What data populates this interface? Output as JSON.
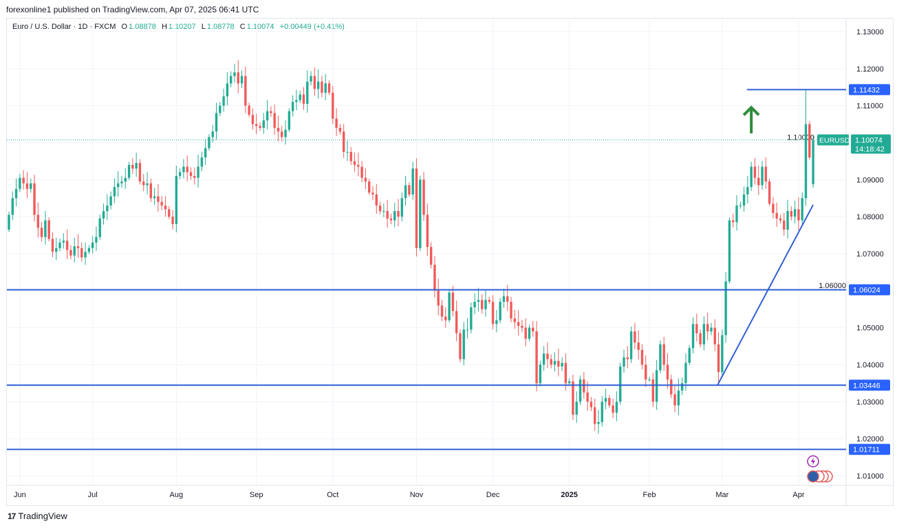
{
  "header": {
    "published": "forexonline1 published on TradingView.com, Apr 07, 2025 06:41 UTC"
  },
  "legend": {
    "symbol": "Euro / U.S. Dollar · 1D · FXCM",
    "o_label": "O",
    "o": "1.08878",
    "h_label": "H",
    "h": "1.10207",
    "l_label": "L",
    "l": "1.08778",
    "c_label": "C",
    "c": "1.10074",
    "change": "+0.00449 (+0.41%)"
  },
  "footer": {
    "logo_text": "TradingView"
  },
  "chart_data": {
    "type": "candlestick",
    "symbol": "EURUSD",
    "interval": "1D",
    "ylim": [
      1.005,
      1.134
    ],
    "grid": true,
    "colors": {
      "up": "#22ab94",
      "down": "#f05a5a",
      "lines": "#2f5fd6",
      "arrow": "#2e8b3a",
      "last_price": "#22ab94"
    },
    "y_ticks": [
      "1.13000",
      "1.12000",
      "1.11000",
      "1.10000",
      "1.09000",
      "1.08000",
      "1.07000",
      "1.06000",
      "1.05000",
      "1.04000",
      "1.03000",
      "1.02000",
      "1.01000"
    ],
    "x_ticks": [
      {
        "label": "Jun",
        "bar": 3
      },
      {
        "label": "Jul",
        "bar": 23
      },
      {
        "label": "Aug",
        "bar": 46
      },
      {
        "label": "Sep",
        "bar": 68
      },
      {
        "label": "Oct",
        "bar": 89
      },
      {
        "label": "Nov",
        "bar": 112
      },
      {
        "label": "Dec",
        "bar": 133
      },
      {
        "label": "2025",
        "bar": 154
      },
      {
        "label": "Feb",
        "bar": 176
      },
      {
        "label": "Mar",
        "bar": 196
      },
      {
        "label": "Apr",
        "bar": 217
      }
    ],
    "closes": [
      1.0805,
      1.085,
      1.0875,
      1.0905,
      1.089,
      1.0875,
      1.089,
      1.0805,
      1.077,
      1.0745,
      1.079,
      1.074,
      1.0705,
      1.0715,
      1.073,
      1.0735,
      1.071,
      1.0695,
      1.072,
      1.0715,
      1.069,
      1.0705,
      1.0715,
      1.073,
      1.0745,
      1.0795,
      1.0815,
      1.083,
      1.0855,
      1.088,
      1.089,
      1.0895,
      1.0905,
      1.094,
      1.093,
      1.0945,
      1.0895,
      1.0885,
      1.089,
      1.085,
      1.0855,
      1.084,
      1.083,
      1.082,
      1.08,
      1.078,
      1.091,
      1.092,
      1.0935,
      1.092,
      1.091,
      1.0905,
      1.0935,
      1.096,
      1.0985,
      1.1015,
      1.103,
      1.108,
      1.11,
      1.1125,
      1.116,
      1.118,
      1.119,
      1.116,
      1.118,
      1.11,
      1.1075,
      1.105,
      1.1045,
      1.104,
      1.106,
      1.1085,
      1.108,
      1.104,
      1.103,
      1.1015,
      1.1035,
      1.1085,
      1.111,
      1.1115,
      1.113,
      1.1105,
      1.1165,
      1.118,
      1.1145,
      1.1165,
      1.1135,
      1.116,
      1.1135,
      1.1065,
      1.104,
      1.103,
      1.0975,
      1.0975,
      1.095,
      1.094,
      1.0935,
      1.0905,
      1.0895,
      1.0865,
      1.086,
      1.083,
      1.0815,
      1.0815,
      1.0795,
      1.079,
      1.0815,
      1.08,
      1.085,
      1.0885,
      1.086,
      1.093,
      1.0715,
      1.09,
      1.0805,
      1.0718,
      1.067,
      1.06,
      1.056,
      1.053,
      1.052,
      1.0595,
      1.0545,
      1.0485,
      1.0415,
      1.0495,
      1.0495,
      1.0555,
      1.057,
      1.0575,
      1.055,
      1.0575,
      1.057,
      1.051,
      1.052,
      1.057,
      1.0585,
      1.057,
      1.0525,
      1.0515,
      1.0505,
      1.05,
      1.047,
      1.05,
      1.049,
      1.035,
      1.04,
      1.043,
      1.0415,
      1.04,
      1.041,
      1.0395,
      1.0405,
      1.035,
      1.0355,
      1.0265,
      1.03,
      1.036,
      1.0325,
      1.03,
      1.0285,
      1.024,
      1.0245,
      1.03,
      1.031,
      1.029,
      1.027,
      1.03,
      1.0395,
      1.042,
      1.0415,
      1.049,
      1.046,
      1.044,
      1.04,
      1.036,
      1.036,
      1.03,
      1.0385,
      1.0455,
      1.04,
      1.036,
      1.032,
      1.029,
      1.033,
      1.035,
      1.0405,
      1.0445,
      1.051,
      1.0485,
      1.0455,
      1.051,
      1.049,
      1.05,
      1.0455,
      1.038,
      1.048,
      1.0625,
      1.079,
      1.0785,
      1.083,
      1.083,
      1.086,
      1.088,
      1.0935,
      1.0905,
      1.0885,
      1.0935,
      1.0895,
      1.0835,
      1.081,
      1.0795,
      1.079,
      1.0765,
      1.0815,
      1.08,
      1.082,
      1.079,
      1.085,
      1.105,
      1.096,
      1.10074
    ],
    "last_candle": {
      "open": 1.08878,
      "high": 1.10207,
      "low": 1.08778,
      "close": 1.10074
    },
    "horizontal_levels": [
      {
        "price": 1.11432,
        "label": "1.11432",
        "from_bar": 203
      },
      {
        "price": 1.06024,
        "label": "1.06024",
        "from_bar": 0
      },
      {
        "price": 1.03446,
        "label": "1.03446",
        "from_bar": 0
      },
      {
        "price": 1.01711,
        "label": "1.01711",
        "from_bar": 0
      }
    ],
    "trendline": {
      "from": {
        "bar": 194.7,
        "price": 1.03446
      },
      "to": {
        "bar": 221,
        "price": 1.0832
      }
    },
    "arrow": {
      "direction": "up",
      "bar": 204,
      "price_top": 1.1095,
      "price_bottom": 1.104
    },
    "last_price": {
      "symbol_tag": "EURUSD",
      "price": "1.10074",
      "countdown": "14:18:42"
    }
  }
}
